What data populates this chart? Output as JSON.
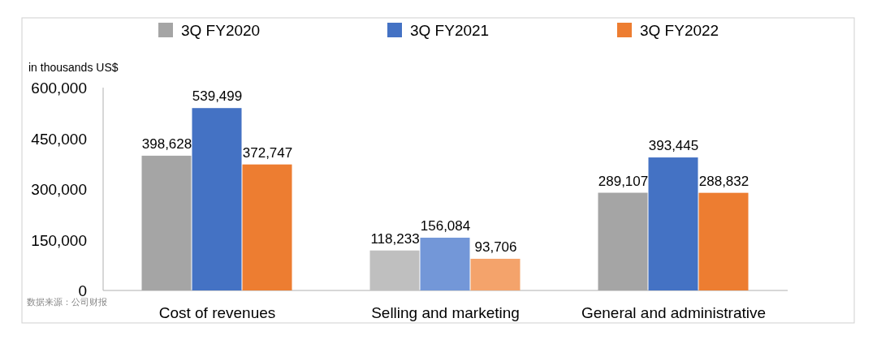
{
  "chart_data": {
    "type": "bar",
    "ylabel": "in thousands US$",
    "categories": [
      "Cost of revenues",
      "Selling and marketing",
      "General and administrative"
    ],
    "series": [
      {
        "name": "3Q FY2020",
        "color": "#a5a5a5",
        "colors": [
          "#a5a5a5",
          "#bfbfbf",
          "#a5a5a5"
        ],
        "values": [
          398628,
          118233,
          289107
        ],
        "value_labels": [
          "398,628",
          "118,233",
          "289,107"
        ]
      },
      {
        "name": "3Q FY2021",
        "color": "#4472c4",
        "colors": [
          "#4472c4",
          "#7397d8",
          "#4472c4"
        ],
        "values": [
          539499,
          156084,
          393445
        ],
        "value_labels": [
          "539,499",
          "156,084",
          "393,445"
        ]
      },
      {
        "name": "3Q FY2022",
        "color": "#ed7d31",
        "colors": [
          "#ed7d31",
          "#f4a36b",
          "#ed7d31"
        ],
        "values": [
          372747,
          93706,
          288832
        ],
        "value_labels": [
          "372,747",
          "93,706",
          "288,832"
        ]
      }
    ],
    "ylim": [
      0,
      600000
    ],
    "yticks": [
      0,
      {
        "value": 150000,
        "label": "150,000"
      },
      {
        "value": 300000,
        "label": "300,000"
      },
      {
        "value": 450000,
        "label": "450,000"
      },
      {
        "value": 600000,
        "label": "600,000"
      }
    ],
    "legend": "top",
    "annotations": [
      "数据来源：公司财报"
    ]
  }
}
